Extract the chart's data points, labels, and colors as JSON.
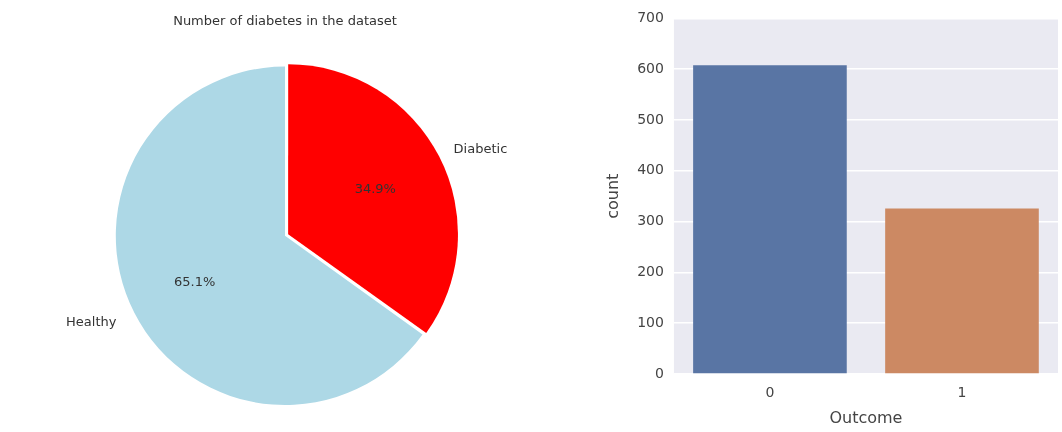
{
  "chart_data": [
    {
      "type": "pie",
      "title": "Number of diabetes in the dataset",
      "categories": [
        "Healthy",
        "Diabetic"
      ],
      "values": [
        65.1,
        34.9
      ],
      "colors": [
        "#add8e6",
        "#ff0000"
      ],
      "value_labels": [
        "65.1%",
        "34.9%"
      ],
      "legend": false
    },
    {
      "type": "bar",
      "categories": [
        "0",
        "1"
      ],
      "values": [
        608,
        326
      ],
      "colors": [
        "#5975a4",
        "#cc8963"
      ],
      "ylim": [
        0,
        700
      ],
      "yticks": [
        0,
        100,
        200,
        300,
        400,
        500,
        600,
        700
      ],
      "xlabel": "Outcome",
      "ylabel": "count",
      "grid": "y",
      "legend": false
    }
  ]
}
